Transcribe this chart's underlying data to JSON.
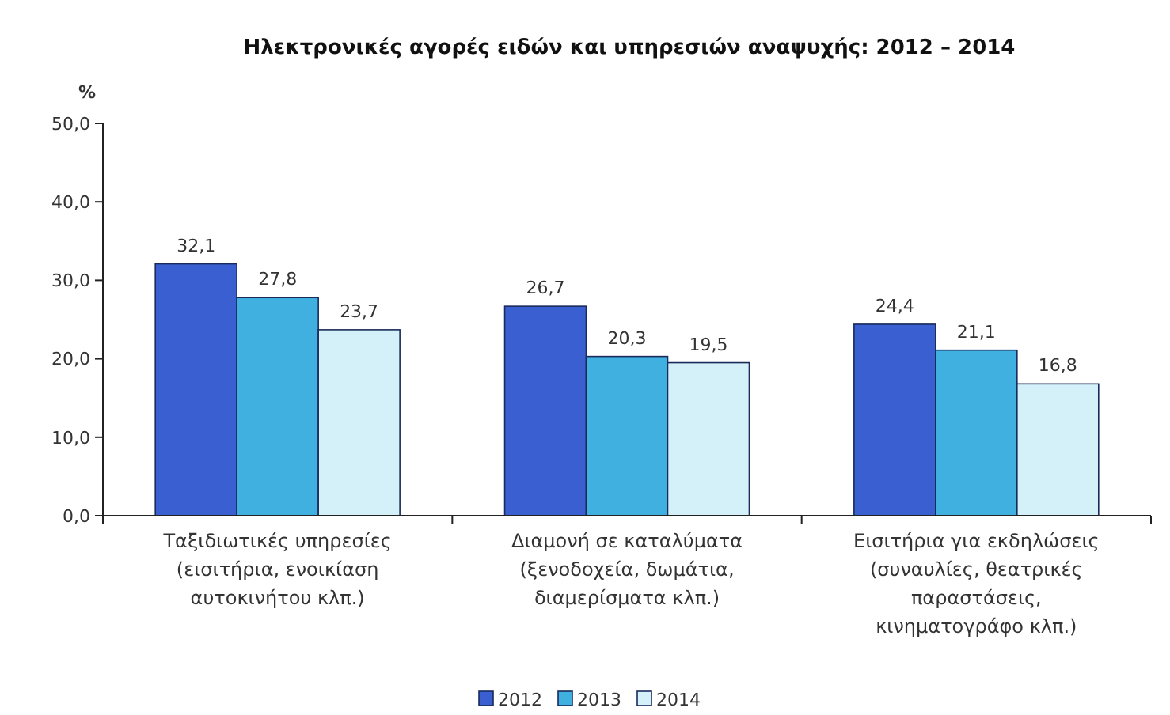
{
  "chart_data": {
    "type": "bar",
    "title": "Ηλεκτρονικές αγορές ειδών και υπηρεσιών αναψυχής: 2012 – 2014",
    "ylabel": "%",
    "categories": [
      "Ταξιδιωτικές υπηρεσίες\n(εισιτήρια, ενοικίαση\nαυτοκινήτου κλπ.)",
      "Διαμονή σε καταλύματα\n(ξενοδοχεία, δωμάτια,\nδιαμερίσματα κλπ.)",
      "Εισιτήρια για εκδηλώσεις\n(συναυλίες, θεατρικές\nπαραστάσεις,\nκινηματογράφο κλπ.)"
    ],
    "series": [
      {
        "name": "2012",
        "color": "#3a5fd0",
        "values": [
          32.1,
          26.7,
          24.4
        ],
        "value_labels": [
          "32,1",
          "26,7",
          "24,4"
        ]
      },
      {
        "name": "2013",
        "color": "#3fb0e0",
        "values": [
          27.8,
          20.3,
          21.1
        ],
        "value_labels": [
          "27,8",
          "20,3",
          "21,1"
        ]
      },
      {
        "name": "2014",
        "color": "#d4f1fa",
        "values": [
          23.7,
          19.5,
          16.8
        ],
        "value_labels": [
          "23,7",
          "19,5",
          "16,8"
        ]
      }
    ],
    "ylim": [
      0,
      50
    ],
    "yticks": [
      {
        "value": 0,
        "label": "0,0"
      },
      {
        "value": 10,
        "label": "10,0"
      },
      {
        "value": 20,
        "label": "20,0"
      },
      {
        "value": 30,
        "label": "30,0"
      },
      {
        "value": 40,
        "label": "40,0"
      },
      {
        "value": 50,
        "label": "50,0"
      }
    ],
    "grid": false,
    "legend": "bottom"
  }
}
